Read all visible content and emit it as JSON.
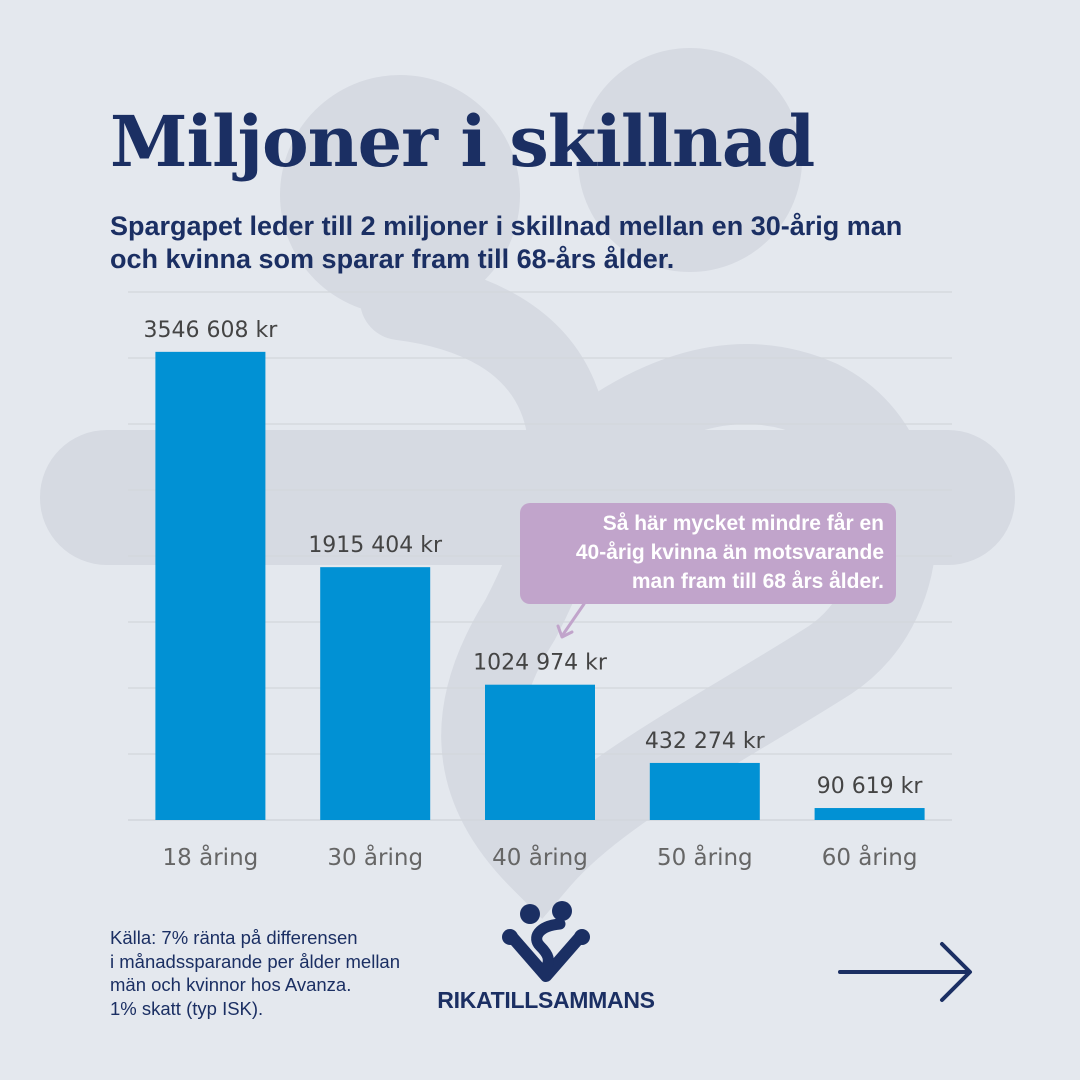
{
  "title": "Miljoner i skillnad",
  "subtitle": "Spargapet leder till 2 miljoner i skillnad mellan en 30-årig man och kvinna som sparar fram till 68-års ålder.",
  "chart_data": {
    "type": "bar",
    "categories": [
      "18 åring",
      "30 åring",
      "40 åring",
      "50 åring",
      "60 åring"
    ],
    "values": [
      3546608,
      1915404,
      1024974,
      432274,
      90619
    ],
    "data_labels": [
      "3546 608 kr",
      "1915 404 kr",
      "1024 974 kr",
      "432 274 kr",
      "90 619 kr"
    ],
    "ylim": [
      0,
      4000000
    ],
    "grid": true,
    "bar_color": "#0191d4",
    "annotation": {
      "lines": [
        "Så här mycket mindre får en",
        "40-årig kvinna än motsvarande",
        "man fram till 68 års ålder."
      ],
      "target_category": "40 åring",
      "color": "#c1a4cb"
    }
  },
  "source": {
    "lines": [
      "Källa: 7% ränta på differensen",
      "i månadssparande per ålder mellan",
      "män och kvinnor hos Avanza.",
      "1% skatt (typ ISK)."
    ]
  },
  "brand": {
    "name": "RIKATILLSAMMANS",
    "logo_icon": "heart-people-icon",
    "color": "#1b2f63"
  },
  "navigation": {
    "icon": "arrow-right-icon"
  },
  "colors": {
    "background": "#e4e8ee",
    "heading": "#1b2f63",
    "bar": "#0191d4",
    "callout": "#c1a4cb",
    "grid": "#d2d6dc",
    "tick_text": "#666666"
  }
}
